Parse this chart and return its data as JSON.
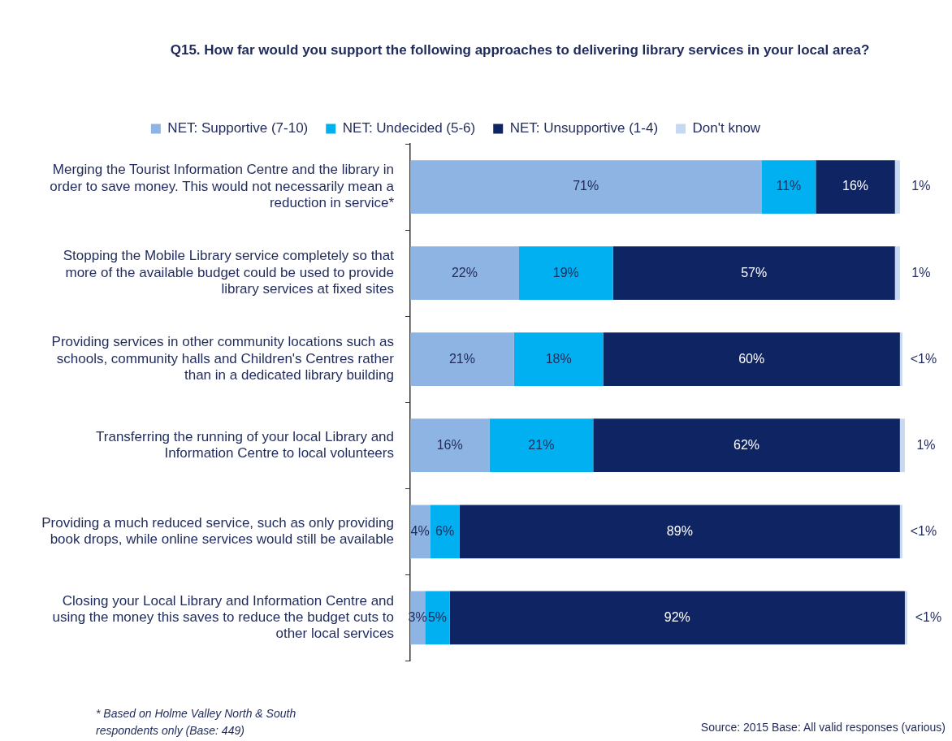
{
  "chart_data": {
    "type": "bar",
    "orientation": "horizontal",
    "stacked": true,
    "title": "Q15. How far would you support the following approaches to delivering library services in your local area?",
    "categories": [
      "Merging the Tourist Information Centre and the library in order to save money. This would not necessarily mean a reduction in service*",
      "Stopping the Mobile Library service completely so that more of the available budget could be used to provide library services at fixed sites",
      "Providing services in other community locations such as schools, community halls and Children's Centres rather than in a dedicated library building",
      "Transferring the running of your local Library and Information Centre to local volunteers",
      "Providing a much reduced service, such as only providing book drops, while online services would still be available",
      "Closing your Local Library and Information Centre and using the money this saves to reduce the budget cuts to other local services"
    ],
    "series": [
      {
        "name": "NET: Supportive (7-10)",
        "color": "#8eb4e3",
        "values": [
          71,
          22,
          21,
          16,
          4,
          3
        ],
        "value_labels": [
          "71%",
          "22%",
          "21%",
          "16%",
          "4%",
          "3%"
        ]
      },
      {
        "name": "NET: Undecided (5-6)",
        "color": "#00b0f0",
        "values": [
          11,
          19,
          18,
          21,
          6,
          5
        ],
        "value_labels": [
          "11%",
          "19%",
          "18%",
          "21%",
          "6%",
          "5%"
        ]
      },
      {
        "name": "NET: Unsupportive (1-4)",
        "color": "#0f2462",
        "values": [
          16,
          57,
          60,
          62,
          89,
          92
        ],
        "value_labels": [
          "16%",
          "57%",
          "60%",
          "62%",
          "89%",
          "92%"
        ]
      },
      {
        "name": "Don't know",
        "color": "#c6d9f1",
        "values": [
          1,
          1,
          0.5,
          1,
          0.5,
          0.5
        ],
        "value_labels": [
          "1%",
          "1%",
          "<1%",
          "1%",
          "<1%",
          "<1%"
        ]
      }
    ],
    "legend": "top",
    "tick_labels": "y",
    "annotations": [
      "* Based on Holme Valley North & South respondents only (Base: 449)",
      "Source: 2015 Base: All valid responses (various)"
    ]
  }
}
